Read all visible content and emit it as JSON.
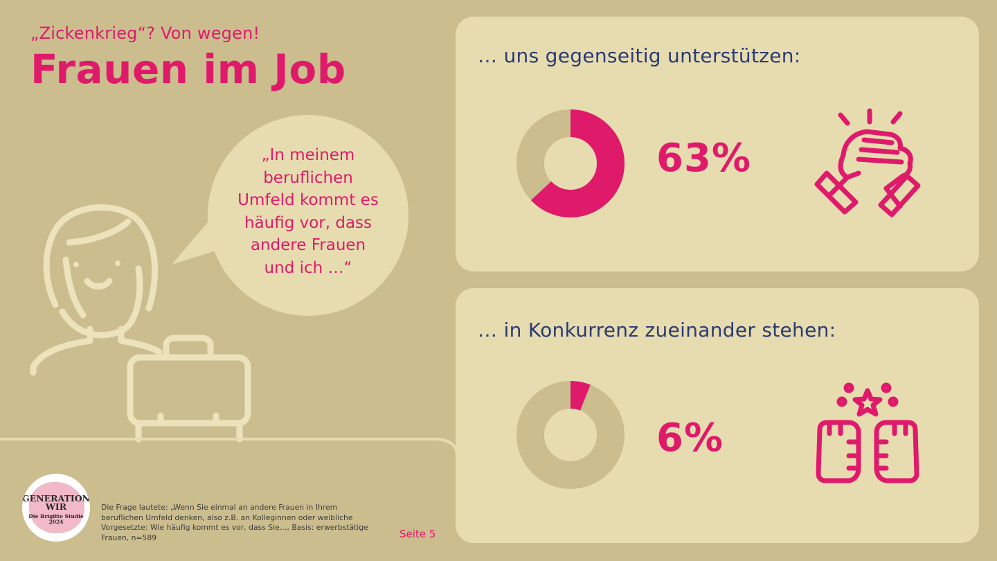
{
  "header": {
    "subtitle": "„Zickenkrieg“? Von wegen!",
    "title": "Frauen im Job"
  },
  "quote": {
    "lines": [
      "„In meinem",
      "beruflichen",
      "Umfeld kommt es",
      "häufig vor, dass",
      "andere Frauen",
      "und ich …“"
    ]
  },
  "chart_data": [
    {
      "type": "pie",
      "title": "… uns gegenseitig unterstützen:",
      "value": 63,
      "label": "63%",
      "icon": "handshake-icon"
    },
    {
      "type": "pie",
      "title": "… in Konkurrenz zueinander stehen:",
      "value": 6,
      "label": "6%",
      "icon": "fists-bump-icon"
    }
  ],
  "colors": {
    "accent": "#e01a6b",
    "background": "#cbbd8e",
    "panel": "#e6dcb0",
    "donut_rest": "#cbbd8e",
    "heading": "#2b3a72",
    "illustration_line": "#ece3bd"
  },
  "footer": {
    "logo_main": "GENERATION WIR",
    "logo_sub": "Die Brigitte Studie 2024",
    "note": "Die Frage lautete: „Wenn Sie einmal an andere Frauen in Ihrem beruflichen Umfeld denken, also z.B. an Kolleginnen oder weibliche Vorgesetzte: Wie häufig kommt es vor, dass Sie…, Basis: erwerbstätige Frauen, n=589",
    "page": "Seite 5"
  }
}
